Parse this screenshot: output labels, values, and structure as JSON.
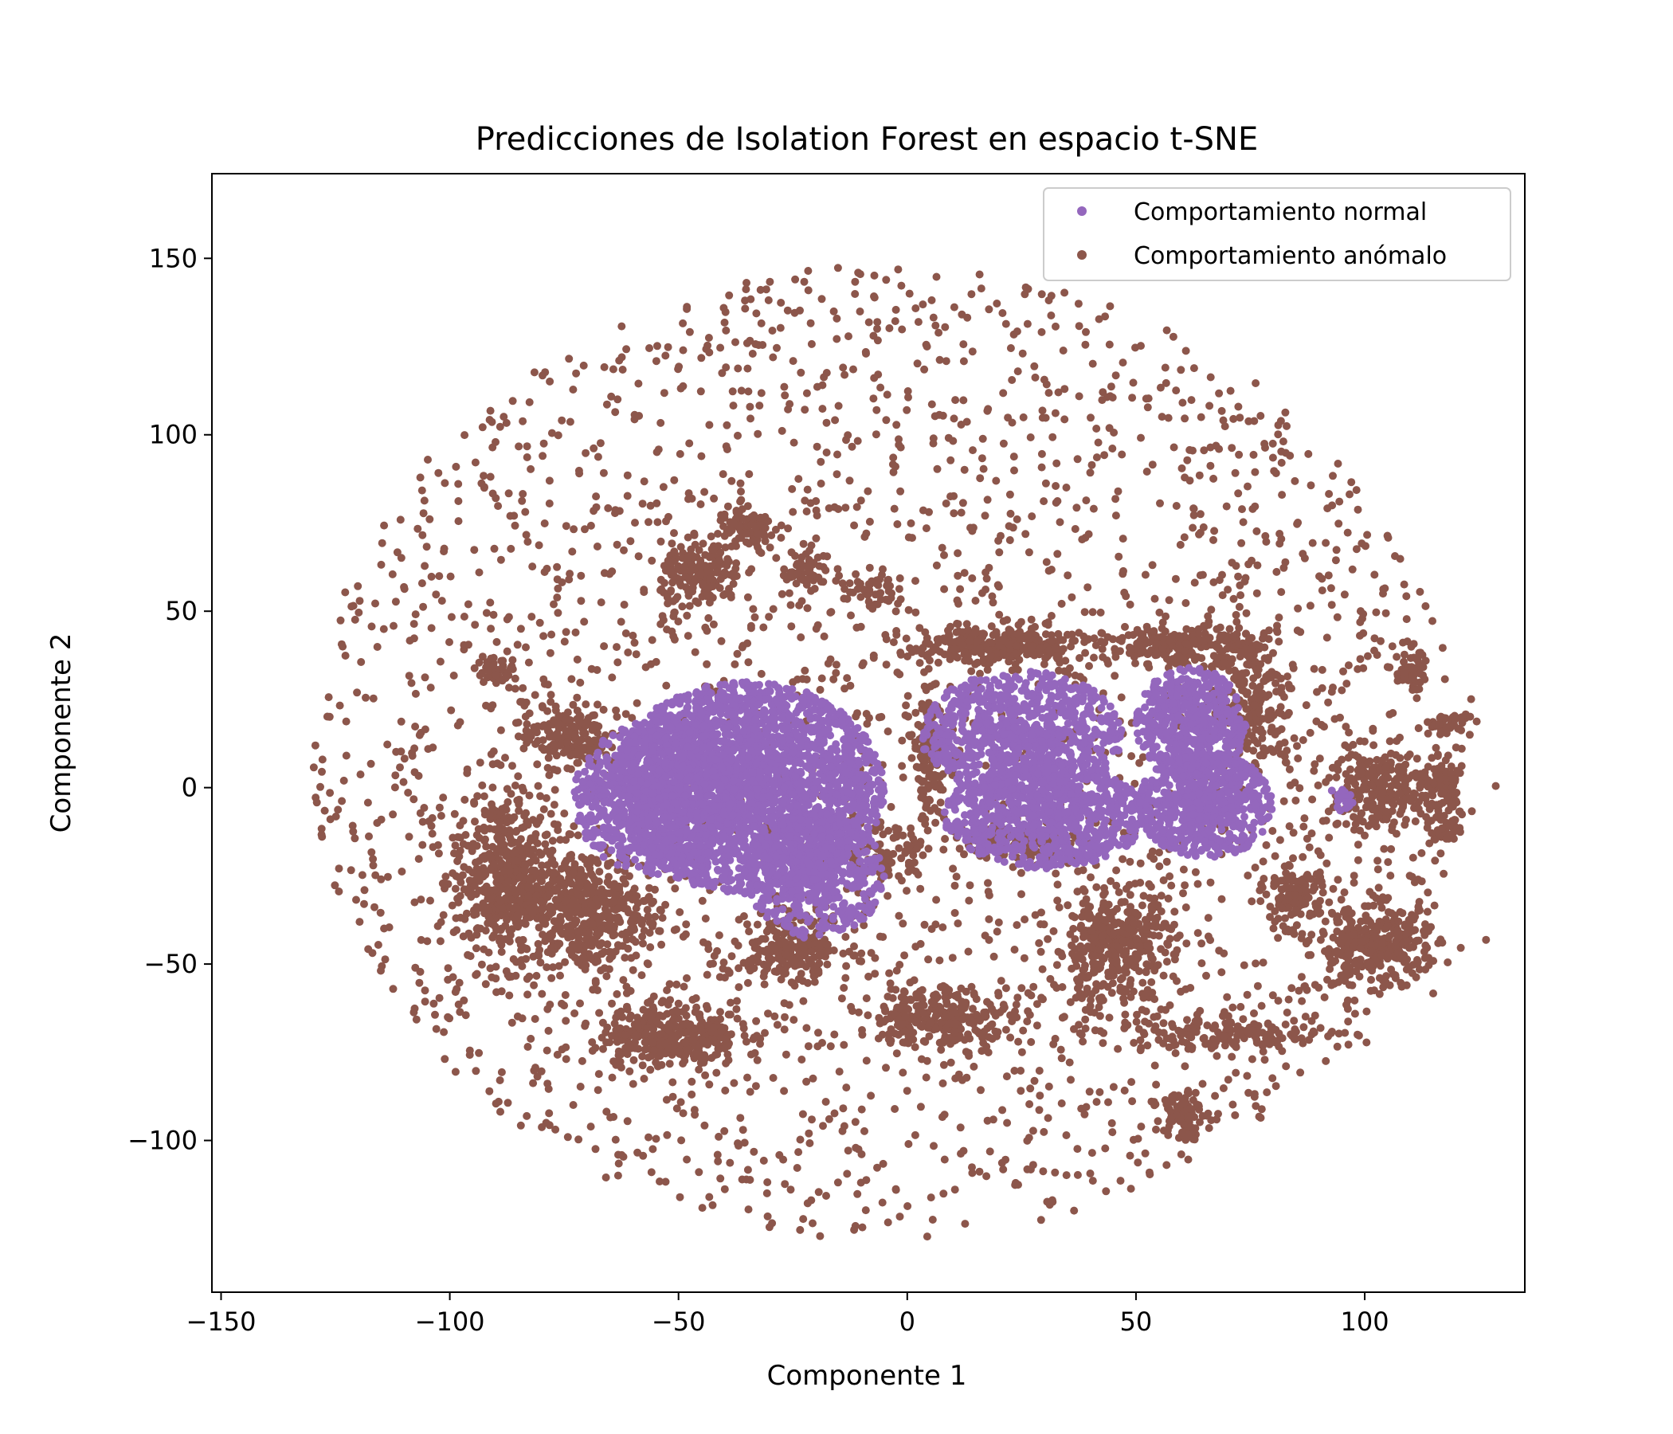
{
  "chart_data": {
    "type": "scatter",
    "title": "Predicciones de Isolation Forest en espacio t-SNE",
    "xlabel": "Componente 1",
    "ylabel": "Componente 2",
    "xlim": [
      -152,
      135
    ],
    "ylim": [
      -143,
      174
    ],
    "xticks": [
      -150,
      -100,
      -50,
      0,
      50,
      100
    ],
    "xtick_labels": [
      "−150",
      "−100",
      "−50",
      "0",
      "50",
      "100"
    ],
    "yticks": [
      -100,
      -50,
      0,
      50,
      100,
      150
    ],
    "ytick_labels": [
      "−100",
      "−50",
      "0",
      "50",
      "100",
      "150"
    ],
    "grid": false,
    "legend_position": "top-right",
    "series": [
      {
        "name": "Comportamiento normal",
        "color": "#9467bd",
        "clusters": [
          {
            "cx": -35,
            "cy": 0,
            "rx": 30,
            "ry": 30,
            "n": 2600
          },
          {
            "cx": -55,
            "cy": -3,
            "rx": 18,
            "ry": 22,
            "n": 700
          },
          {
            "cx": -20,
            "cy": -25,
            "rx": 15,
            "ry": 18,
            "n": 500
          },
          {
            "cx": 25,
            "cy": 15,
            "rx": 22,
            "ry": 18,
            "n": 900
          },
          {
            "cx": 30,
            "cy": -8,
            "rx": 22,
            "ry": 15,
            "n": 800
          },
          {
            "cx": 62,
            "cy": 18,
            "rx": 12,
            "ry": 16,
            "n": 500
          },
          {
            "cx": 65,
            "cy": -5,
            "rx": 15,
            "ry": 15,
            "n": 650
          },
          {
            "cx": 95,
            "cy": -3,
            "rx": 3,
            "ry": 4,
            "n": 25
          }
        ]
      },
      {
        "name": "Comportamiento anómalo",
        "color": "#8c564b",
        "clusters": [
          {
            "cx": -88,
            "cy": -25,
            "rx": 10,
            "ry": 22,
            "n": 450
          },
          {
            "cx": -70,
            "cy": -35,
            "rx": 14,
            "ry": 16,
            "n": 450
          },
          {
            "cx": -75,
            "cy": 15,
            "rx": 8,
            "ry": 8,
            "n": 160
          },
          {
            "cx": -52,
            "cy": -70,
            "rx": 14,
            "ry": 8,
            "n": 320
          },
          {
            "cx": -45,
            "cy": 60,
            "rx": 8,
            "ry": 8,
            "n": 180
          },
          {
            "cx": -35,
            "cy": 73,
            "rx": 6,
            "ry": 6,
            "n": 90
          },
          {
            "cx": -25,
            "cy": -45,
            "rx": 12,
            "ry": 8,
            "n": 220
          },
          {
            "cx": 20,
            "cy": 40,
            "rx": 18,
            "ry": 5,
            "n": 300
          },
          {
            "cx": 60,
            "cy": 40,
            "rx": 15,
            "ry": 5,
            "n": 220
          },
          {
            "cx": 8,
            "cy": -65,
            "rx": 14,
            "ry": 8,
            "n": 260
          },
          {
            "cx": 45,
            "cy": -45,
            "rx": 12,
            "ry": 15,
            "n": 380
          },
          {
            "cx": 75,
            "cy": 25,
            "rx": 8,
            "ry": 20,
            "n": 220
          },
          {
            "cx": 103,
            "cy": -45,
            "rx": 12,
            "ry": 10,
            "n": 320
          },
          {
            "cx": 105,
            "cy": 0,
            "rx": 12,
            "ry": 10,
            "n": 260
          },
          {
            "cx": 118,
            "cy": -5,
            "rx": 4,
            "ry": 12,
            "n": 100
          },
          {
            "cx": 70,
            "cy": -70,
            "rx": 25,
            "ry": 4,
            "n": 160
          },
          {
            "cx": 60,
            "cy": -92,
            "rx": 4,
            "ry": 7,
            "n": 100
          },
          {
            "cx": 25,
            "cy": -15,
            "rx": 10,
            "ry": 5,
            "n": 140
          },
          {
            "cx": -5,
            "cy": -20,
            "rx": 6,
            "ry": 6,
            "n": 80
          },
          {
            "cx": 85,
            "cy": -30,
            "rx": 6,
            "ry": 8,
            "n": 110
          },
          {
            "cx": 110,
            "cy": 33,
            "rx": 3,
            "ry": 6,
            "n": 50
          },
          {
            "cx": 118,
            "cy": 18,
            "rx": 5,
            "ry": 3,
            "n": 40
          },
          {
            "cx": 5,
            "cy": 10,
            "rx": 4,
            "ry": 18,
            "n": 140
          },
          {
            "cx": -90,
            "cy": 33,
            "rx": 5,
            "ry": 4,
            "n": 40
          },
          {
            "cx": -8,
            "cy": 55,
            "rx": 6,
            "ry": 4,
            "n": 40
          },
          {
            "cx": -22,
            "cy": 62,
            "rx": 5,
            "ry": 5,
            "n": 50
          }
        ],
        "scatter_region": {
          "cx": -5,
          "cy": 10,
          "rx": 125,
          "ry": 138,
          "n": 2600
        }
      }
    ]
  }
}
